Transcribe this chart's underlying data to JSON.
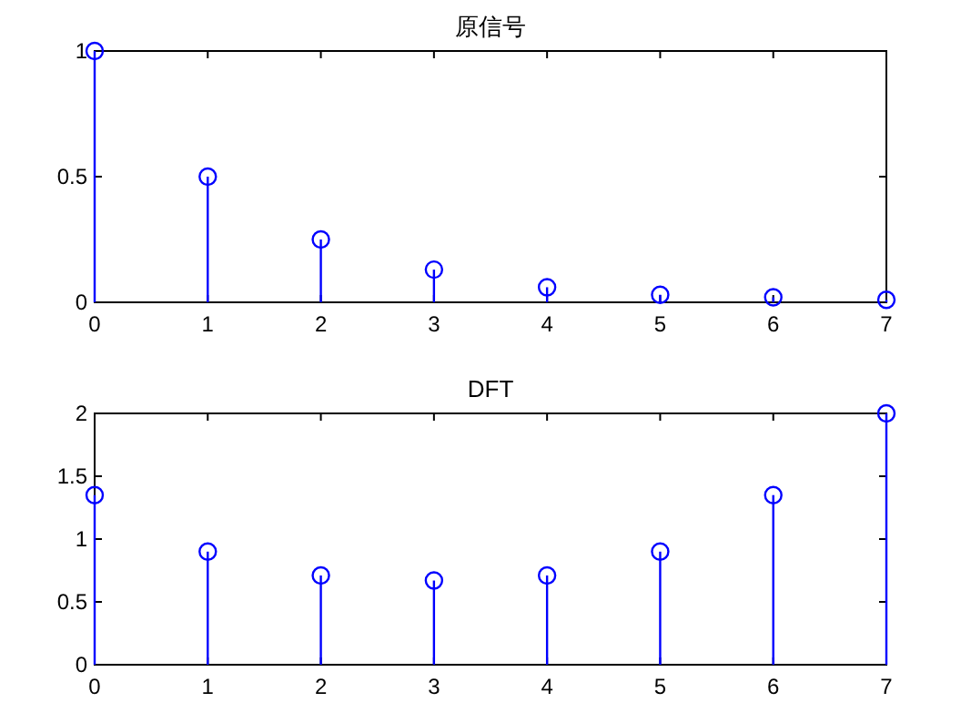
{
  "chart_data": [
    {
      "type": "lollipop",
      "title": "原信号",
      "x": [
        0,
        1,
        2,
        3,
        4,
        5,
        6,
        7
      ],
      "values": [
        1,
        0.5,
        0.25,
        0.13,
        0.06,
        0.03,
        0.02,
        0.01
      ],
      "color": "#0000ff",
      "marker": "circle",
      "xlim": [
        0,
        7
      ],
      "xticks": [
        0,
        1,
        2,
        3,
        4,
        5,
        6,
        7
      ],
      "ylim": [
        0,
        1
      ],
      "yticks": [
        0,
        0.5,
        1
      ]
    },
    {
      "type": "lollipop",
      "title": "DFT",
      "x": [
        0,
        1,
        2,
        3,
        4,
        5,
        6,
        7
      ],
      "values": [
        1.35,
        0.9,
        0.71,
        0.67,
        0.71,
        0.9,
        1.35,
        2
      ],
      "color": "#0000ff",
      "marker": "circle",
      "xlim": [
        0,
        7
      ],
      "xticks": [
        0,
        1,
        2,
        3,
        4,
        5,
        6,
        7
      ],
      "ylim": [
        0,
        2
      ],
      "yticks": [
        0,
        0.5,
        1,
        1.5,
        2
      ]
    }
  ]
}
